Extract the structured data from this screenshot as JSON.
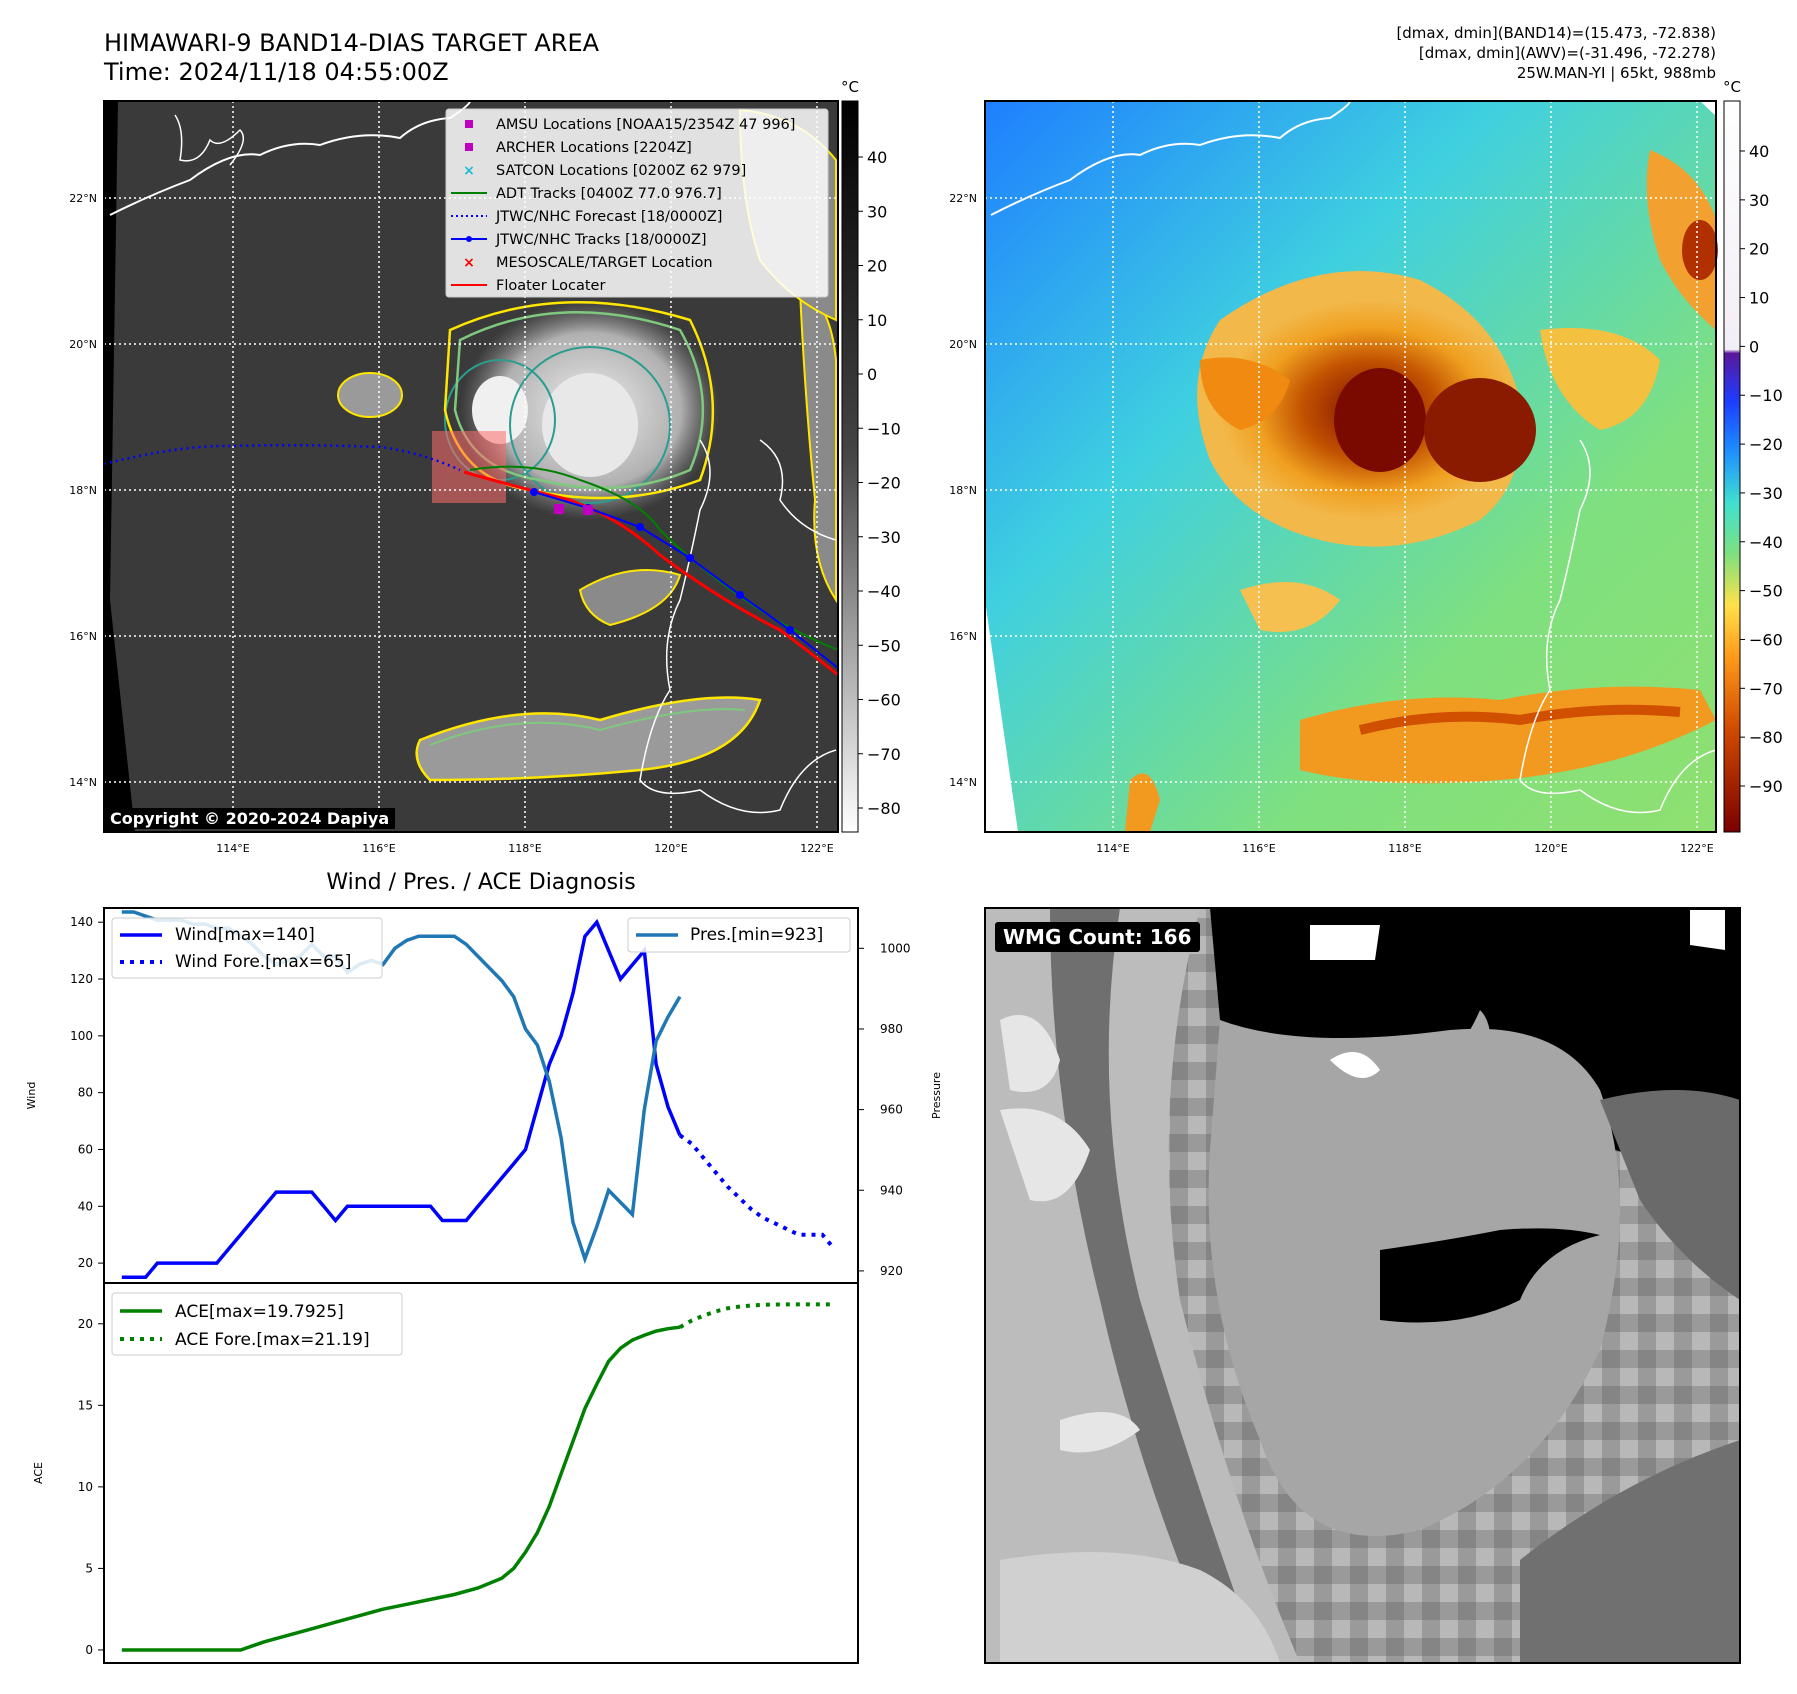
{
  "header": {
    "title": "HIMAWARI-9 BAND14-DIAS TARGET AREA",
    "time": "Time: 2024/11/18 04:55:00Z",
    "info_line1": "[dmax, dmin](BAND14)=(15.473, -72.838)",
    "info_line2": "[dmax, dmin](AWV)=(-31.496, -72.278)",
    "info_line3": "25W.MAN-YI | 65kt, 988mb"
  },
  "map_panel": {
    "copyright": "Copyright © 2020-2024 Dapiya",
    "lat_labels": [
      "22°N",
      "20°N",
      "18°N",
      "16°N",
      "14°N"
    ],
    "lon_labels": [
      "114°E",
      "116°E",
      "118°E",
      "120°E",
      "122°E"
    ],
    "colorbar_unit": "°C",
    "colorbar_ticks": [
      "40",
      "30",
      "20",
      "10",
      "0",
      "−10",
      "−20",
      "−30",
      "−40",
      "−50",
      "−60",
      "−70",
      "−80"
    ],
    "legend": [
      {
        "label": "AMSU Locations [NOAA15/2354Z 47 996]",
        "color": "#c000c0"
      },
      {
        "label": "ARCHER Locations [2204Z]",
        "color": "#c000c0"
      },
      {
        "label": "SATCON Locations [0200Z 62 979]",
        "color": "#17becf"
      },
      {
        "label": "ADT Tracks [0400Z 77.0 976.7]",
        "color": "#008000"
      },
      {
        "label": "JTWC/NHC Forecast [18/0000Z]",
        "color": "#0000ff"
      },
      {
        "label": "JTWC/NHC Tracks [18/0000Z]",
        "color": "#0000ff"
      },
      {
        "label": "MESOSCALE/TARGET Location",
        "color": "#ff0000"
      },
      {
        "label": "Floater Locater",
        "color": "#ff0000"
      }
    ]
  },
  "awv_panel": {
    "colorbar_unit": "°C",
    "colorbar_ticks": [
      "40",
      "30",
      "20",
      "10",
      "0",
      "−10",
      "−20",
      "−30",
      "−40",
      "−50",
      "−60",
      "−70",
      "−80",
      "−90"
    ],
    "lat_labels": [
      "22°N",
      "20°N",
      "18°N",
      "16°N",
      "14°N"
    ],
    "lon_labels": [
      "114°E",
      "116°E",
      "118°E",
      "120°E",
      "122°E"
    ]
  },
  "wmg_panel": {
    "label": "WMG Count: 166"
  },
  "colors": {
    "wind": "#0000ff",
    "pressure": "#1f77b4",
    "ace": "#008000"
  },
  "chart_data": [
    {
      "type": "line",
      "title": "Wind / Pres. / ACE Diagnosis",
      "ylabel": "Wind",
      "y2label": "Pressure",
      "ylim": [
        13,
        145
      ],
      "y2lim": [
        917,
        1010
      ],
      "yticks": [
        20,
        40,
        60,
        80,
        100,
        120,
        140
      ],
      "y2ticks": [
        920,
        940,
        960,
        980,
        1000
      ],
      "x": [
        0,
        1,
        2,
        3,
        4,
        5,
        6,
        7,
        8,
        9,
        10,
        11,
        12,
        13,
        14,
        15,
        16,
        17,
        18,
        19,
        20,
        21,
        22,
        23,
        24,
        25,
        26,
        27,
        28,
        29,
        30,
        31,
        32,
        33,
        34,
        35,
        36,
        37,
        38,
        39,
        40,
        41,
        42,
        43,
        44,
        45,
        46,
        47,
        48,
        49,
        50,
        51,
        52,
        53,
        54,
        55,
        56,
        57,
        58,
        59,
        60
      ],
      "xlim": [
        -1.5,
        62
      ],
      "series": [
        {
          "name": "Wind[max=140]",
          "axis": "left",
          "style": "solid",
          "color": "#0000ff",
          "x": [
            0,
            1,
            2,
            3,
            4,
            5,
            6,
            7,
            8,
            9,
            10,
            11,
            12,
            13,
            14,
            15,
            16,
            17,
            18,
            19,
            20,
            21,
            22,
            23,
            24,
            25,
            26,
            27,
            28,
            29,
            30,
            31,
            32,
            33,
            34,
            35,
            36,
            37,
            38,
            39,
            40,
            41,
            42,
            43,
            44,
            45,
            46,
            47
          ],
          "values": [
            15,
            15,
            15,
            20,
            20,
            20,
            20,
            20,
            20,
            25,
            30,
            35,
            40,
            45,
            45,
            45,
            45,
            40,
            35,
            40,
            40,
            40,
            40,
            40,
            40,
            40,
            40,
            35,
            35,
            35,
            40,
            45,
            50,
            55,
            60,
            75,
            90,
            100,
            115,
            135,
            140,
            130,
            120,
            125,
            130,
            90,
            75,
            65
          ]
        },
        {
          "name": "Wind Fore.[max=65]",
          "axis": "left",
          "style": "dotted",
          "color": "#0000ff",
          "x": [
            47,
            48,
            49,
            50,
            51,
            52,
            53,
            54,
            55,
            56,
            57,
            58,
            59,
            60
          ],
          "values": [
            65,
            62,
            57,
            52,
            47,
            43,
            39,
            36,
            34,
            32,
            30,
            30,
            30,
            25
          ]
        },
        {
          "name": "Pres.[min=923]",
          "axis": "right",
          "style": "solid",
          "color": "#1f77b4",
          "x": [
            0,
            1,
            2,
            3,
            4,
            5,
            6,
            7,
            8,
            9,
            10,
            11,
            12,
            13,
            14,
            15,
            16,
            17,
            18,
            19,
            20,
            21,
            22,
            23,
            24,
            25,
            26,
            27,
            28,
            29,
            30,
            31,
            32,
            33,
            34,
            35,
            36,
            37,
            38,
            39,
            40,
            41,
            42,
            43,
            44,
            45,
            46,
            47
          ],
          "values": [
            1009,
            1009,
            1008,
            1007,
            1007,
            1007,
            1006,
            1006,
            1005,
            1005,
            1003,
            1001,
            998,
            996,
            997,
            998,
            1001,
            998,
            998,
            994,
            996,
            997,
            996,
            1000,
            1002,
            1003,
            1003,
            1003,
            1003,
            1001,
            998,
            995,
            992,
            988,
            980,
            976,
            967,
            953,
            932,
            923,
            931,
            940,
            937,
            934,
            960,
            977,
            983,
            988
          ]
        }
      ]
    },
    {
      "type": "line",
      "ylabel": "ACE",
      "ylim": [
        -0.8,
        22.5
      ],
      "yticks": [
        0,
        5,
        10,
        15,
        20
      ],
      "xlim": [
        -1.5,
        62
      ],
      "series": [
        {
          "name": "ACE[max=19.7925]",
          "style": "solid",
          "color": "#008000",
          "x": [
            0,
            2,
            4,
            6,
            8,
            10,
            12,
            14,
            16,
            18,
            20,
            22,
            24,
            26,
            28,
            30,
            32,
            33,
            34,
            35,
            36,
            37,
            38,
            39,
            40,
            41,
            42,
            43,
            44,
            45,
            46,
            47
          ],
          "values": [
            0,
            0,
            0,
            0,
            0,
            0,
            0.5,
            0.9,
            1.3,
            1.7,
            2.1,
            2.5,
            2.8,
            3.1,
            3.4,
            3.8,
            4.4,
            5,
            6,
            7.2,
            8.8,
            10.8,
            12.8,
            14.8,
            16.3,
            17.7,
            18.5,
            19.0,
            19.3,
            19.55,
            19.7,
            19.7925
          ]
        },
        {
          "name": "ACE Fore.[max=21.19]",
          "style": "dotted",
          "color": "#008000",
          "x": [
            47,
            48,
            49,
            50,
            51,
            52,
            53,
            54,
            55,
            56,
            57,
            58,
            59,
            60
          ],
          "values": [
            19.79,
            20.2,
            20.5,
            20.75,
            20.95,
            21.05,
            21.12,
            21.16,
            21.18,
            21.19,
            21.19,
            21.19,
            21.19,
            21.19
          ]
        }
      ]
    }
  ]
}
